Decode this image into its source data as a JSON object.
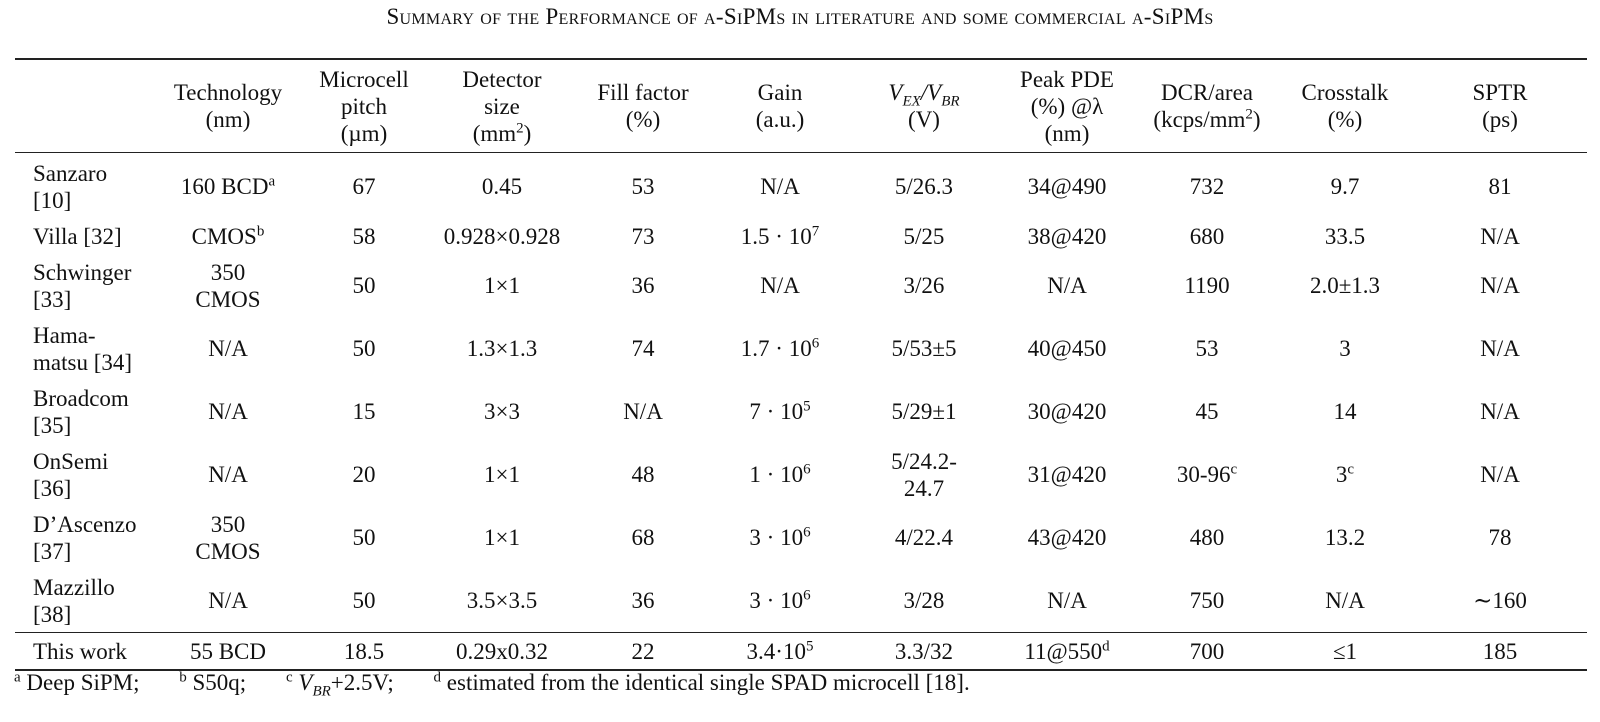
{
  "caption": "Summary of the Performance of a-SiPMs in literature and some commercial a-SiPMs",
  "headers": [
    {
      "l1": "",
      "l2": "",
      "l3": ""
    },
    {
      "l1": "Technology",
      "l2": "(nm)",
      "l3": ""
    },
    {
      "l1": "Microcell",
      "l2": "pitch",
      "l3": "(µm)"
    },
    {
      "l1": "Detector",
      "l2": "size",
      "l3": "(mm",
      "sup": "2",
      "tail": ")"
    },
    {
      "l1": "Fill factor",
      "l2": "(%)",
      "l3": ""
    },
    {
      "l1": "Gain",
      "l2": "(a.u.)",
      "l3": ""
    },
    {
      "l1": "V",
      "sub1": "EX",
      "mid": "/V",
      "sub2": "BR",
      "l2": "(V)"
    },
    {
      "l1": "Peak PDE",
      "l2": "(%) @λ",
      "l3": "(nm)"
    },
    {
      "l1": "DCR/area",
      "l2": "(kcps/mm",
      "sup": "2",
      "tail": ")"
    },
    {
      "l1": "Crosstalk",
      "l2": "(%)",
      "l3": ""
    },
    {
      "l1": "SPTR",
      "l2": "(ps)",
      "l3": ""
    }
  ],
  "rows": [
    {
      "name": "Sanzaro [10]",
      "tech": "160 BCD",
      "tech_sup": "a",
      "pitch": "67",
      "size": "0.45",
      "fill": "53",
      "gain": "N/A",
      "gain_sup": "",
      "vex": "5/26.3",
      "pde": "34@490",
      "pde_sup": "",
      "dcr": "732",
      "dcr_sup": "",
      "xt": "9.7",
      "xt_sup": "",
      "sptr": "81"
    },
    {
      "name": "Villa [32]",
      "tech": "CMOS",
      "tech_sup": "b",
      "pitch": "58",
      "size": "0.928×0.928",
      "fill": "73",
      "gain": "1.5 · 10",
      "gain_sup": "7",
      "vex": "5/25",
      "pde": "38@420",
      "pde_sup": "",
      "dcr": "680",
      "dcr_sup": "",
      "xt": "33.5",
      "xt_sup": "",
      "sptr": "N/A"
    },
    {
      "name": "Schwinger [33]",
      "tech": "350 CMOS",
      "tech_sup": "",
      "pitch": "50",
      "size": "1×1",
      "fill": "36",
      "gain": "N/A",
      "gain_sup": "",
      "vex": "3/26",
      "pde": "N/A",
      "pde_sup": "",
      "dcr": "1190",
      "dcr_sup": "",
      "xt": "2.0±1.3",
      "xt_sup": "",
      "sptr": "N/A"
    },
    {
      "name": "Hama- matsu [34]",
      "tech": "N/A",
      "tech_sup": "",
      "pitch": "50",
      "size": "1.3×1.3",
      "fill": "74",
      "gain": "1.7 · 10",
      "gain_sup": "6",
      "vex": "5/53±5",
      "pde": "40@450",
      "pde_sup": "",
      "dcr": "53",
      "dcr_sup": "",
      "xt": "3",
      "xt_sup": "",
      "sptr": "N/A"
    },
    {
      "name": "Broadcom [35]",
      "tech": "N/A",
      "tech_sup": "",
      "pitch": "15",
      "size": "3×3",
      "fill": "N/A",
      "gain": "7 · 10",
      "gain_sup": "5",
      "vex": "5/29±1",
      "pde": "30@420",
      "pde_sup": "",
      "dcr": "45",
      "dcr_sup": "",
      "xt": "14",
      "xt_sup": "",
      "sptr": "N/A"
    },
    {
      "name": "OnSemi [36]",
      "tech": "N/A",
      "tech_sup": "",
      "pitch": "20",
      "size": "1×1",
      "fill": "48",
      "gain": "1 · 10",
      "gain_sup": "6",
      "vex": "5/24.2- 24.7",
      "pde": "31@420",
      "pde_sup": "",
      "dcr": "30-96",
      "dcr_sup": "c",
      "xt": "3",
      "xt_sup": "c",
      "sptr": "N/A"
    },
    {
      "name": "D’Ascenzo [37]",
      "tech": "350 CMOS",
      "tech_sup": "",
      "pitch": "50",
      "size": "1×1",
      "fill": "68",
      "gain": "3 · 10",
      "gain_sup": "6",
      "vex": "4/22.4",
      "pde": "43@420",
      "pde_sup": "",
      "dcr": "480",
      "dcr_sup": "",
      "xt": "13.2",
      "xt_sup": "",
      "sptr": "78"
    },
    {
      "name": "Mazzillo [38]",
      "tech": "N/A",
      "tech_sup": "",
      "pitch": "50",
      "size": "3.5×3.5",
      "fill": "36",
      "gain": "3 · 10",
      "gain_sup": "6",
      "vex": "3/28",
      "pde": "N/A",
      "pde_sup": "",
      "dcr": "750",
      "dcr_sup": "",
      "xt": "N/A",
      "xt_sup": "",
      "sptr": "∼160"
    },
    {
      "name": "This work",
      "tech": "55 BCD",
      "tech_sup": "",
      "pitch": "18.5",
      "size": "0.29x0.32",
      "fill": "22",
      "gain": "3.4·10",
      "gain_sup": "5",
      "vex": "3.3/32",
      "pde": "11@550",
      "pde_sup": "d",
      "dcr": "700",
      "dcr_sup": "",
      "xt": "≤1",
      "xt_sup": "",
      "sptr": "185"
    }
  ],
  "footnotes": {
    "a": {
      "mark": "a",
      "text": "Deep SiPM;"
    },
    "b": {
      "mark": "b",
      "text": "S50q;"
    },
    "c": {
      "mark": "c",
      "v": "V",
      "sub": "BR",
      "text": "+2.5V;"
    },
    "d": {
      "mark": "d",
      "text": "estimated from the identical single SPAD microcell [18]."
    }
  }
}
